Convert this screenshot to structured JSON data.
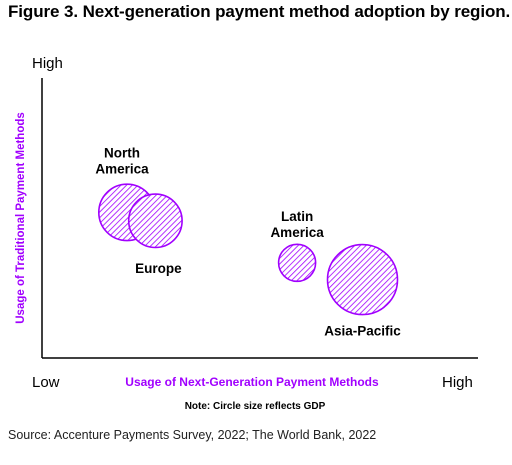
{
  "title": "Figure 3. Next-generation payment method adoption by region.",
  "source": "Source: Accenture Payments Survey, 2022; The World Bank, 2022",
  "chart_data": {
    "type": "scatter",
    "title": "Figure 3. Next-generation payment method adoption by region.",
    "xlabel": "Usage of Next-Generation Payment Methods",
    "ylabel": "Usage of Traditional Payment Methods",
    "x_tick_labels": {
      "low": "Low",
      "high": "High"
    },
    "y_tick_labels": {
      "high": "High"
    },
    "xlim": [
      0,
      100
    ],
    "ylim": [
      0,
      100
    ],
    "note": "Note: Circle size reflects GDP",
    "grid": false,
    "legend": "none",
    "colors": {
      "accent": "#A100FF",
      "axis": "#000000"
    },
    "points": [
      {
        "label": "North America",
        "x": 19.5,
        "y": 52,
        "size": 65
      },
      {
        "label": "Europe",
        "x": 26.0,
        "y": 49,
        "size": 58
      },
      {
        "label": "Latin America",
        "x": 58.5,
        "y": 34,
        "size": 28
      },
      {
        "label": "Asia-Pacific",
        "x": 73.5,
        "y": 28,
        "size": 100
      }
    ]
  }
}
